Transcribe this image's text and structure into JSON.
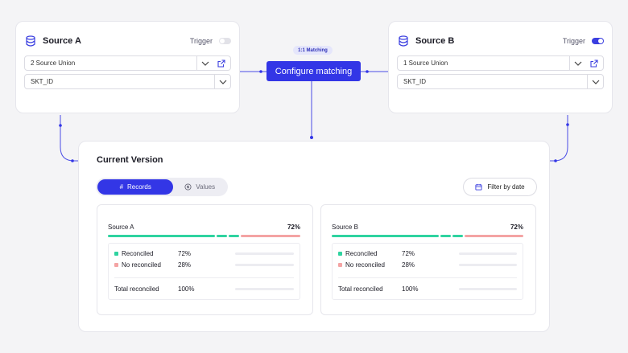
{
  "source_a": {
    "title": "Source A",
    "trigger_label": "Trigger",
    "trigger_on": false,
    "dataset": "2 Source Union",
    "key": "SKT_ID"
  },
  "source_b": {
    "title": "Source B",
    "trigger_label": "Trigger",
    "trigger_on": true,
    "dataset": "1 Source Union",
    "key": "SKT_ID"
  },
  "matching": {
    "badge": "1:1 Matching",
    "button": "Configure matching"
  },
  "main": {
    "title": "Current Version",
    "tabs": [
      {
        "label": "Records",
        "icon": "hash-icon",
        "active": true
      },
      {
        "label": "Values",
        "icon": "coin-icon",
        "active": false
      }
    ],
    "filter_label": "Filter by date",
    "panels": [
      {
        "name": "Source A",
        "percent": "72%",
        "rows": [
          {
            "label": "Reconciled",
            "value": "72%"
          },
          {
            "label": "No reconciled",
            "value": "28%"
          }
        ],
        "total_label": "Total reconciled",
        "total_value": "100%"
      },
      {
        "name": "Source B",
        "percent": "72%",
        "rows": [
          {
            "label": "Reconciled",
            "value": "72%"
          },
          {
            "label": "No reconciled",
            "value": "28%"
          }
        ],
        "total_label": "Total reconciled",
        "total_value": "100%"
      }
    ]
  },
  "colors": {
    "accent": "#3336e6",
    "reconciled": "#2fd3a0",
    "not_reconciled": "#f4a4a4"
  }
}
